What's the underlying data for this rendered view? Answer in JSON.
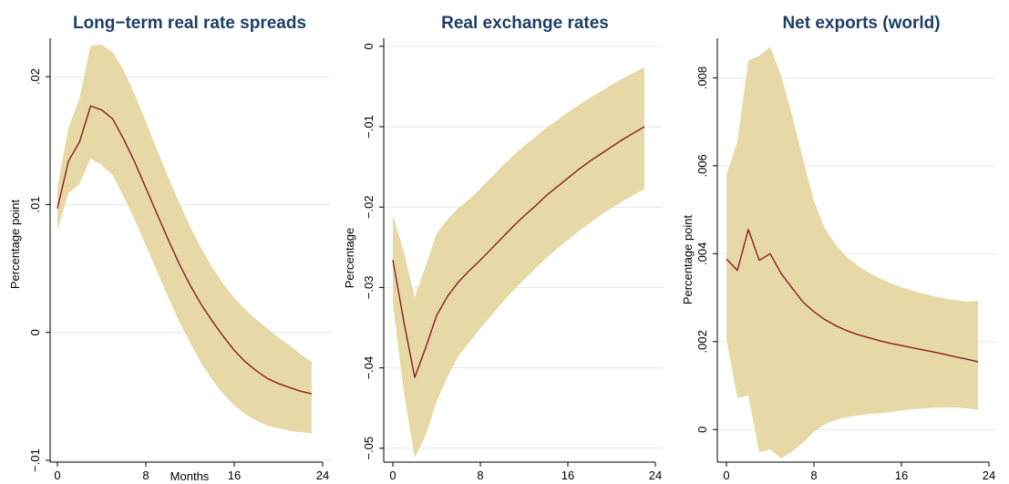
{
  "chart_data": [
    {
      "type": "area",
      "title": "Long−term real rate spreads",
      "xlabel": "Months",
      "ylabel": "Percentage point",
      "xlim": [
        0,
        24
      ],
      "ylim": [
        -0.01,
        0.023
      ],
      "x_ticks": [
        "0",
        "8",
        "16",
        "24"
      ],
      "y_ticks": [
        -0.01,
        0,
        0.01,
        0.02
      ],
      "y_tick_labels": [
        "−.01",
        "0",
        ".01",
        ".02"
      ],
      "grid": true,
      "series": [
        {
          "x": [
            0,
            1,
            2,
            3,
            4,
            5,
            6,
            7,
            8,
            9,
            10,
            11,
            12,
            13,
            14,
            15,
            16,
            17,
            18,
            19,
            20,
            21,
            22,
            23
          ],
          "y": [
            0.0097,
            0.0134,
            0.0149,
            0.0177,
            0.0174,
            0.0167,
            0.0151,
            0.0133,
            0.0113,
            0.0093,
            0.0073,
            0.0054,
            0.0037,
            0.0022,
            0.0009,
            -0.0003,
            -0.0014,
            -0.0023,
            -0.003,
            -0.0036,
            -0.004,
            -0.0043,
            -0.0046,
            -0.0048
          ]
        }
      ],
      "confidence_band": {
        "lower": [
          0.008,
          0.0109,
          0.0116,
          0.0136,
          0.0131,
          0.0123,
          0.0106,
          0.0088,
          0.0068,
          0.0048,
          0.0028,
          0.0009,
          -0.0008,
          -0.0024,
          -0.0037,
          -0.0048,
          -0.0057,
          -0.0064,
          -0.0069,
          -0.0073,
          -0.0075,
          -0.0077,
          -0.0078,
          -0.0079
        ],
        "upper": [
          0.0114,
          0.016,
          0.0183,
          0.0224,
          0.0225,
          0.0219,
          0.0205,
          0.0186,
          0.0165,
          0.0143,
          0.0122,
          0.0102,
          0.0083,
          0.0066,
          0.0051,
          0.0038,
          0.0027,
          0.0018,
          0.001,
          0.0003,
          -0.0004,
          -0.001,
          -0.0017,
          -0.0023
        ]
      }
    },
    {
      "type": "area",
      "title": "Real exchange rates",
      "xlabel": "",
      "ylabel": "Percentage",
      "xlim": [
        0,
        24
      ],
      "ylim": [
        -0.0515,
        0.001
      ],
      "x_ticks": [
        "0",
        "8",
        "16",
        "24"
      ],
      "y_ticks": [
        -0.05,
        -0.04,
        -0.03,
        -0.02,
        -0.01,
        0
      ],
      "y_tick_labels": [
        "−.05",
        "−.04",
        "−.03",
        "−.02",
        "−.01",
        "0"
      ],
      "grid": true,
      "series": [
        {
          "x": [
            0,
            1,
            2,
            3,
            4,
            5,
            6,
            7,
            8,
            9,
            10,
            11,
            12,
            13,
            14,
            15,
            16,
            17,
            18,
            19,
            20,
            21,
            22,
            23
          ],
          "y": [
            -0.0266,
            -0.0342,
            -0.0412,
            -0.0375,
            -0.0335,
            -0.0311,
            -0.0293,
            -0.0279,
            -0.0266,
            -0.0252,
            -0.0238,
            -0.0224,
            -0.0211,
            -0.0199,
            -0.0186,
            -0.0175,
            -0.0164,
            -0.0153,
            -0.0143,
            -0.0134,
            -0.0125,
            -0.0116,
            -0.0108,
            -0.01
          ]
        }
      ],
      "confidence_band": {
        "lower": [
          -0.032,
          -0.043,
          -0.0512,
          -0.0484,
          -0.0442,
          -0.0411,
          -0.0385,
          -0.0368,
          -0.0351,
          -0.0335,
          -0.0319,
          -0.0304,
          -0.029,
          -0.0277,
          -0.0264,
          -0.0252,
          -0.0241,
          -0.023,
          -0.022,
          -0.021,
          -0.0201,
          -0.0193,
          -0.0185,
          -0.0178
        ],
        "upper": [
          -0.021,
          -0.0255,
          -0.0312,
          -0.0273,
          -0.0233,
          -0.0215,
          -0.0201,
          -0.019,
          -0.0177,
          -0.0163,
          -0.0149,
          -0.0136,
          -0.0124,
          -0.0113,
          -0.0102,
          -0.0092,
          -0.0082,
          -0.0073,
          -0.0064,
          -0.0056,
          -0.0048,
          -0.004,
          -0.0033,
          -0.0026
        ]
      }
    },
    {
      "type": "area",
      "title": "Net exports (world)",
      "xlabel": "",
      "ylabel": "Percentage point",
      "xlim": [
        0,
        24
      ],
      "ylim": [
        -0.0007,
        0.0089
      ],
      "x_ticks": [
        "0",
        "8",
        "16",
        "24"
      ],
      "y_ticks": [
        0,
        0.002,
        0.004,
        0.006,
        0.008
      ],
      "y_tick_labels": [
        "0",
        ".002",
        ".004",
        ".006",
        ".008"
      ],
      "grid": true,
      "series": [
        {
          "x": [
            0,
            1,
            2,
            3,
            4,
            5,
            6,
            7,
            8,
            9,
            10,
            11,
            12,
            13,
            14,
            15,
            16,
            17,
            18,
            19,
            20,
            21,
            22,
            23
          ],
          "y": [
            0.00388,
            0.00362,
            0.00455,
            0.00385,
            0.004,
            0.00355,
            0.00322,
            0.0029,
            0.00268,
            0.0025,
            0.00236,
            0.00225,
            0.00216,
            0.00209,
            0.00202,
            0.00196,
            0.00191,
            0.00186,
            0.00181,
            0.00176,
            0.00171,
            0.00165,
            0.0016,
            0.00154
          ]
        }
      ],
      "confidence_band": {
        "lower": [
          0.00205,
          0.00072,
          0.00077,
          -0.00052,
          -0.00045,
          -0.00066,
          -0.0005,
          -0.0003,
          -5e-05,
          0.00012,
          0.00022,
          0.00028,
          0.00032,
          0.00035,
          0.00037,
          0.0004,
          0.00043,
          0.00046,
          0.00048,
          0.00049,
          0.0005,
          0.0005,
          0.00048,
          0.00045
        ],
        "upper": [
          0.0058,
          0.00655,
          0.0084,
          0.0085,
          0.0087,
          0.00805,
          0.00715,
          0.00615,
          0.0052,
          0.00458,
          0.0042,
          0.00392,
          0.00373,
          0.00357,
          0.00344,
          0.00333,
          0.00324,
          0.00316,
          0.00309,
          0.00303,
          0.00298,
          0.00294,
          0.00291,
          0.00293
        ]
      }
    }
  ]
}
